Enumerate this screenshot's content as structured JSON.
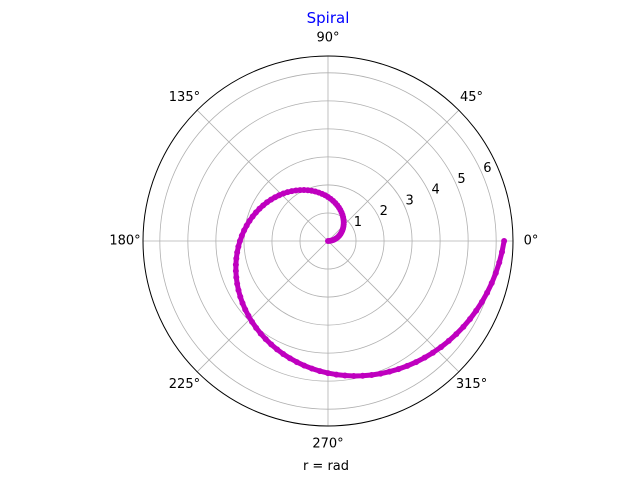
{
  "chart_data": {
    "type": "scatter",
    "projection": "polar",
    "title": "Spiral",
    "title_color": "#0000ff",
    "xlabel": "r = rad",
    "marker": "dot",
    "series_color": "#bf00bf",
    "rlim": [
      0,
      6.6
    ],
    "r_ticks": [
      "1",
      "2",
      "3",
      "4",
      "5",
      "6"
    ],
    "theta_ticks": [
      "0°",
      "45°",
      "90°",
      "135°",
      "180°",
      "225°",
      "270°",
      "315°"
    ],
    "grid": true,
    "theta_rad": [
      0,
      0.063,
      0.126,
      0.188,
      0.251,
      0.314,
      0.377,
      0.44,
      0.503,
      0.565,
      0.628,
      0.691,
      0.754,
      0.817,
      0.88,
      0.942,
      1.005,
      1.068,
      1.131,
      1.194,
      1.257,
      1.319,
      1.382,
      1.445,
      1.508,
      1.571,
      1.634,
      1.696,
      1.759,
      1.822,
      1.885,
      1.948,
      2.011,
      2.073,
      2.136,
      2.199,
      2.262,
      2.325,
      2.388,
      2.45,
      2.513,
      2.576,
      2.639,
      2.702,
      2.765,
      2.827,
      2.89,
      2.953,
      3.016,
      3.079,
      3.142,
      3.204,
      3.267,
      3.33,
      3.393,
      3.456,
      3.519,
      3.581,
      3.644,
      3.707,
      3.77,
      3.833,
      3.896,
      3.958,
      4.021,
      4.084,
      4.147,
      4.21,
      4.273,
      4.335,
      4.398,
      4.461,
      4.524,
      4.587,
      4.65,
      4.712,
      4.775,
      4.838,
      4.901,
      4.964,
      5.027,
      5.089,
      5.152,
      5.215,
      5.278,
      5.341,
      5.404,
      5.466,
      5.529,
      5.592,
      5.655,
      5.718,
      5.781,
      5.843,
      5.906,
      5.969,
      6.032,
      6.095,
      6.158,
      6.22,
      6.283
    ],
    "r": [
      0,
      0.063,
      0.126,
      0.188,
      0.251,
      0.314,
      0.377,
      0.44,
      0.503,
      0.565,
      0.628,
      0.691,
      0.754,
      0.817,
      0.88,
      0.942,
      1.005,
      1.068,
      1.131,
      1.194,
      1.257,
      1.319,
      1.382,
      1.445,
      1.508,
      1.571,
      1.634,
      1.696,
      1.759,
      1.822,
      1.885,
      1.948,
      2.011,
      2.073,
      2.136,
      2.199,
      2.262,
      2.325,
      2.388,
      2.45,
      2.513,
      2.576,
      2.639,
      2.702,
      2.765,
      2.827,
      2.89,
      2.953,
      3.016,
      3.079,
      3.142,
      3.204,
      3.267,
      3.33,
      3.393,
      3.456,
      3.519,
      3.581,
      3.644,
      3.707,
      3.77,
      3.833,
      3.896,
      3.958,
      4.021,
      4.084,
      4.147,
      4.21,
      4.273,
      4.335,
      4.398,
      4.461,
      4.524,
      4.587,
      4.65,
      4.712,
      4.775,
      4.838,
      4.901,
      4.964,
      5.027,
      5.089,
      5.152,
      5.215,
      5.278,
      5.341,
      5.404,
      5.466,
      5.529,
      5.592,
      5.655,
      5.718,
      5.781,
      5.843,
      5.906,
      5.969,
      6.032,
      6.095,
      6.158,
      6.22,
      6.283
    ]
  }
}
